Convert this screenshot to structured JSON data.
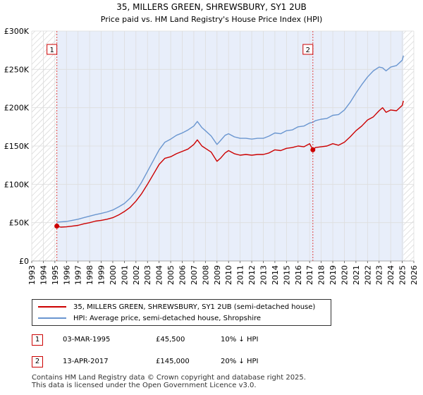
{
  "title": "35, MILLERS GREEN, SHREWSBURY, SY1 2UB",
  "subtitle": "Price paid vs. HM Land Registry's House Price Index (HPI)",
  "colors": {
    "property": "#cc0000",
    "hpi": "#6a96d0",
    "shade": "#e8eefa",
    "grid": "#dddddd",
    "marker_line": "#dd4444"
  },
  "chart_data": {
    "type": "line",
    "title": "35, MILLERS GREEN, SHREWSBURY, SY1 2UB",
    "subtitle": "Price paid vs. HM Land Registry's House Price Index (HPI)",
    "xlim": [
      1993,
      2026
    ],
    "ylim": [
      0,
      300000
    ],
    "x_ticks": [
      1993,
      1994,
      1995,
      1996,
      1997,
      1998,
      1999,
      2000,
      2001,
      2002,
      2003,
      2004,
      2005,
      2006,
      2007,
      2008,
      2009,
      2010,
      2011,
      2012,
      2013,
      2014,
      2015,
      2016,
      2017,
      2018,
      2019,
      2020,
      2021,
      2022,
      2023,
      2024,
      2025,
      2026
    ],
    "x_tick_labels": [
      "1993",
      "1994",
      "1995",
      "1996",
      "1997",
      "1998",
      "1999",
      "2000",
      "2001",
      "2002",
      "2003",
      "2004",
      "2005",
      "2006",
      "2007",
      "2008",
      "2009",
      "2010",
      "2011",
      "2012",
      "2013",
      "2014",
      "2015",
      "2016",
      "2017",
      "2018",
      "2019",
      "2020",
      "2021",
      "2022",
      "2023",
      "2024",
      "2025",
      "2026"
    ],
    "y_ticks": [
      0,
      50000,
      100000,
      150000,
      200000,
      250000,
      300000
    ],
    "y_tick_labels": [
      "£0",
      "£50K",
      "£100K",
      "£150K",
      "£200K",
      "£250K",
      "£300K"
    ],
    "grid": true,
    "ownership_shade": [
      1995.17,
      2025.1
    ],
    "hatched_before": 1995.17,
    "hatched_after": 2025.1,
    "series": [
      {
        "name": "35, MILLERS GREEN, SHREWSBURY, SY1 2UB (semi-detached house)",
        "x": [
          1995.17,
          1995.5,
          1996,
          1996.5,
          1997,
          1997.5,
          1998,
          1998.5,
          1999,
          1999.5,
          2000,
          2000.5,
          2001,
          2001.5,
          2002,
          2002.5,
          2003,
          2003.5,
          2004,
          2004.5,
          2005,
          2005.5,
          2006,
          2006.5,
          2007,
          2007.3,
          2007.7,
          2008,
          2008.5,
          2009,
          2009.3,
          2009.7,
          2010,
          2010.5,
          2011,
          2011.5,
          2012,
          2012.5,
          2013,
          2013.5,
          2014,
          2014.5,
          2015,
          2015.5,
          2016,
          2016.5,
          2017,
          2017.28,
          2017.5,
          2018,
          2018.5,
          2019,
          2019.5,
          2020,
          2020.5,
          2021,
          2021.5,
          2022,
          2022.5,
          2023,
          2023.3,
          2023.6,
          2024,
          2024.5,
          2025,
          2025.1
        ],
        "values": [
          45500,
          44200,
          44500,
          45500,
          46500,
          48500,
          50000,
          52000,
          53000,
          54500,
          56500,
          60000,
          64500,
          70000,
          78000,
          88000,
          100000,
          113000,
          126000,
          134000,
          136000,
          140000,
          143000,
          146000,
          152000,
          158000,
          150000,
          147000,
          142000,
          130000,
          134000,
          141000,
          144000,
          140000,
          138000,
          139000,
          138000,
          139000,
          139000,
          141000,
          145000,
          144000,
          147000,
          148000,
          150000,
          149000,
          153000,
          145000,
          148000,
          149000,
          150000,
          153000,
          151000,
          155000,
          162000,
          170000,
          176000,
          184000,
          188000,
          196000,
          200000,
          194000,
          197000,
          196000,
          203000,
          209000
        ]
      },
      {
        "name": "HPI: Average price, semi-detached house, Shropshire",
        "x": [
          1995.17,
          1995.5,
          1996,
          1996.5,
          1997,
          1997.5,
          1998,
          1998.5,
          1999,
          1999.5,
          2000,
          2000.5,
          2001,
          2001.5,
          2002,
          2002.5,
          2003,
          2003.5,
          2004,
          2004.5,
          2005,
          2005.5,
          2006,
          2006.5,
          2007,
          2007.3,
          2007.7,
          2008,
          2008.5,
          2009,
          2009.3,
          2009.7,
          2010,
          2010.5,
          2011,
          2011.5,
          2012,
          2012.5,
          2013,
          2013.5,
          2014,
          2014.5,
          2015,
          2015.5,
          2016,
          2016.5,
          2017,
          2017.28,
          2017.5,
          2018,
          2018.5,
          2019,
          2019.5,
          2020,
          2020.5,
          2021,
          2021.5,
          2022,
          2022.5,
          2023,
          2023.3,
          2023.6,
          2024,
          2024.5,
          2025,
          2025.1
        ],
        "values": [
          50500,
          51000,
          51500,
          53000,
          54500,
          56500,
          58500,
          60500,
          62000,
          64000,
          66500,
          70500,
          75000,
          82000,
          91000,
          103000,
          117000,
          131000,
          145000,
          155000,
          159000,
          164000,
          167000,
          171000,
          176000,
          182000,
          174000,
          170000,
          163000,
          152000,
          157000,
          164000,
          166000,
          162000,
          160000,
          160000,
          159000,
          160000,
          160000,
          163000,
          167000,
          166000,
          170000,
          171000,
          175000,
          176000,
          180000,
          181000,
          183000,
          185000,
          186000,
          190000,
          191000,
          197000,
          207000,
          219000,
          230000,
          240000,
          248000,
          253000,
          252000,
          248000,
          253000,
          255000,
          262000,
          268000
        ]
      }
    ],
    "annotations": [
      {
        "label": "1",
        "x": 1995.17,
        "y": 45500
      },
      {
        "label": "2",
        "x": 2017.28,
        "y": 145000
      }
    ]
  },
  "legend": {
    "items": [
      {
        "label": "35, MILLERS GREEN, SHREWSBURY, SY1 2UB (semi-detached house)"
      },
      {
        "label": "HPI: Average price, semi-detached house, Shropshire"
      }
    ]
  },
  "transactions": [
    {
      "num": "1",
      "date": "03-MAR-1995",
      "price": "£45,500",
      "hpi": "10% ↓ HPI"
    },
    {
      "num": "2",
      "date": "13-APR-2017",
      "price": "£145,000",
      "hpi": "20% ↓ HPI"
    }
  ],
  "footer": {
    "line1": "Contains HM Land Registry data © Crown copyright and database right 2025.",
    "line2": "This data is licensed under the Open Government Licence v3.0."
  }
}
